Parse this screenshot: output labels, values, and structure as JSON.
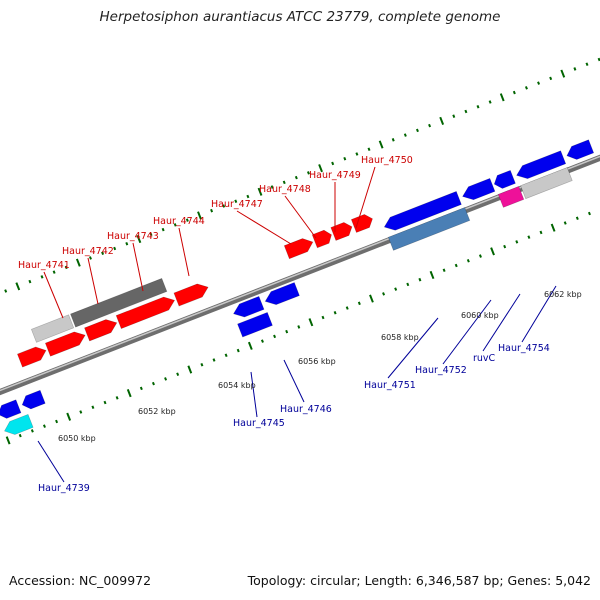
{
  "header": {
    "title": "Herpetosiphon aurantiacus ATCC 23779, complete genome"
  },
  "footer": {
    "accession": "Accession: NC_009972",
    "summary": "Topology: circular; Length: 6,346,587 bp; Genes: 5,042"
  },
  "colors": {
    "forward_gene": "#ff0000",
    "reverse_gene": "#0000ee",
    "label_forward": "#cc0000",
    "label_reverse": "#000099",
    "backbone": "#888888",
    "tick": "#006400",
    "gray_gene": "#c8c8c8",
    "dark_gene": "#666666",
    "steel_gene": "#4a7fb5",
    "magenta_gene": "#ee1199",
    "cyan_gene": "#00e5ee"
  },
  "scale_labels": [
    "6050 kbp",
    "6052 kbp",
    "6054 kbp",
    "6056 kbp",
    "6058 kbp",
    "6060 kbp",
    "6062 kbp"
  ],
  "genes_upper": [
    "Haur_4741",
    "Haur_4742",
    "Haur_4743",
    "Haur_4744",
    "Haur_4747",
    "Haur_4748",
    "Haur_4749",
    "Haur_4750"
  ],
  "genes_lower": [
    "Haur_4739",
    "Haur_4745",
    "Haur_4746",
    "Haur_4751",
    "Haur_4752",
    "ruvC",
    "Haur_4754"
  ]
}
